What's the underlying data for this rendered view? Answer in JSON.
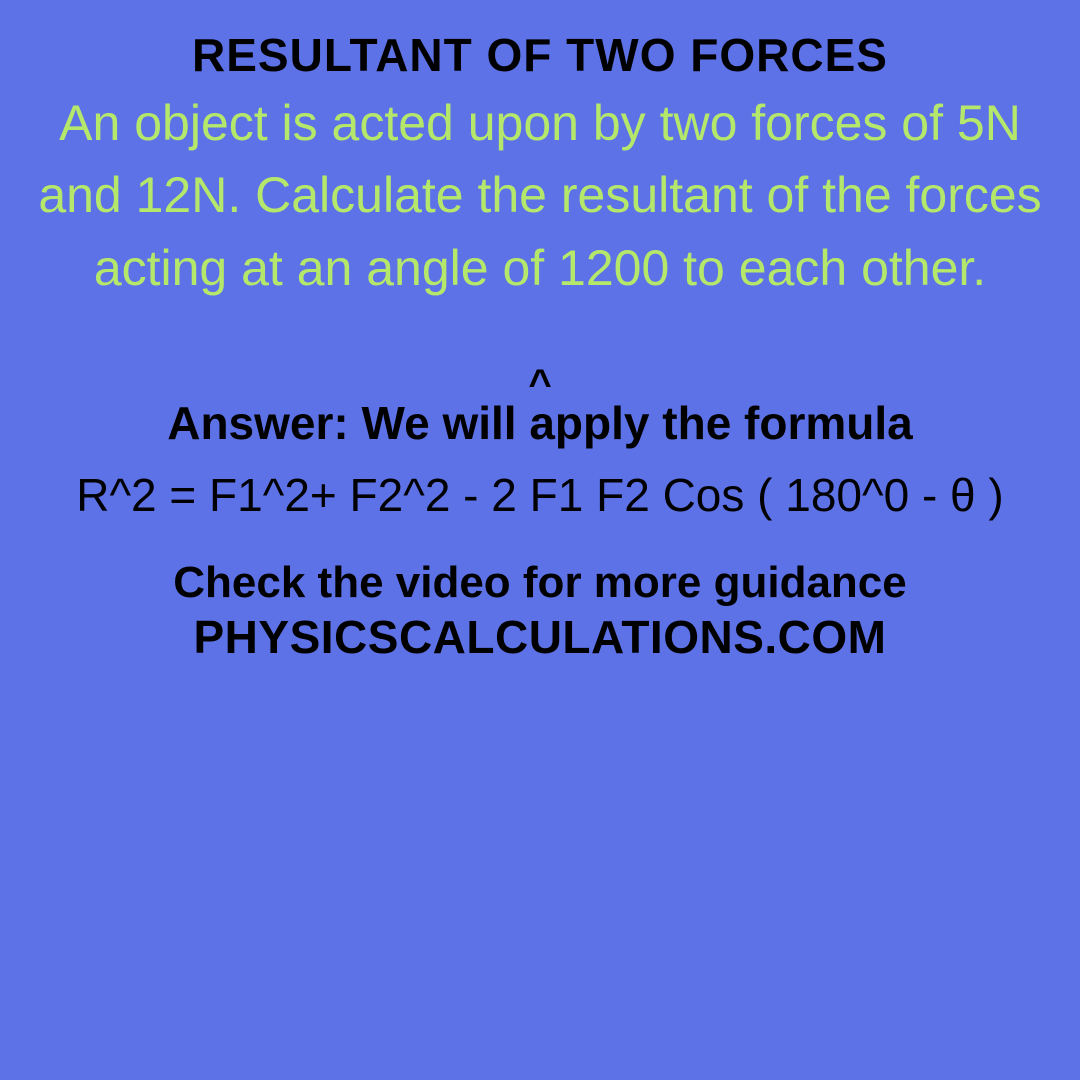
{
  "colors": {
    "background": "#5e72e8",
    "title_text": "#000000",
    "question_text": "#b5e86a",
    "body_text": "#000000"
  },
  "typography": {
    "title_fontsize": 46,
    "title_weight": 900,
    "question_fontsize": 50,
    "question_weight": 400,
    "answer_label_fontsize": 46,
    "answer_label_weight": 900,
    "formula_fontsize": 46,
    "formula_weight": 400,
    "guidance_fontsize": 44,
    "guidance_weight": 900,
    "site_fontsize": 46,
    "site_weight": 900
  },
  "content": {
    "title": "RESULTANT OF TWO FORCES",
    "question": "An object is acted upon by two forces of 5N and 12N. Calculate the resultant of the forces acting at an angle of 1200 to each other.",
    "caret": "^",
    "answer_label": "Answer: We will apply the formula",
    "formula": "R^2 = F1^2+ F2^2 - 2 F1 F2 Cos ( 180^0 - θ )",
    "guidance": "Check the video for more guidance",
    "site": "PHYSICSCALCULATIONS.COM"
  },
  "problem_data": {
    "force1_N": 5,
    "force2_N": 12,
    "angle_deg": 120
  }
}
